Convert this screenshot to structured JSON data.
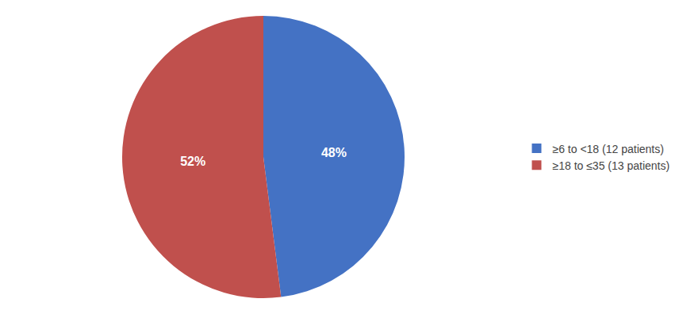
{
  "chart_data": {
    "type": "pie",
    "categories": [
      "≥6 to <18 (12 patients)",
      "≥18 to ≤35 (13 patients)"
    ],
    "values": [
      48,
      52
    ],
    "value_labels": [
      "48%",
      "52%"
    ],
    "colors": [
      "#4472C4",
      "#C0504D"
    ],
    "data_labels": true,
    "legend": "right"
  }
}
